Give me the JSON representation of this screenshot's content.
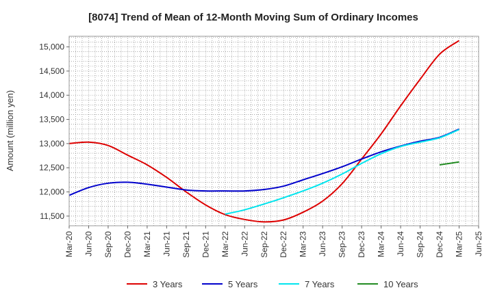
{
  "chart_data": {
    "type": "line",
    "title": "[8074]  Trend of Mean of 12-Month Moving Sum of Ordinary Incomes",
    "xlabel": "",
    "ylabel": "Amount (million yen)",
    "ylim": [
      11300,
      15220
    ],
    "yticks": [
      11500,
      12000,
      12500,
      13000,
      13500,
      14000,
      14500,
      15000
    ],
    "ytick_labels": [
      "11,500",
      "12,000",
      "12,500",
      "13,000",
      "13,500",
      "14,000",
      "14,500",
      "15,000"
    ],
    "categories": [
      "Mar-20",
      "Jun-20",
      "Sep-20",
      "Dec-20",
      "Mar-21",
      "Jun-21",
      "Sep-21",
      "Dec-21",
      "Mar-22",
      "Jun-22",
      "Sep-22",
      "Dec-22",
      "Mar-23",
      "Jun-23",
      "Sep-23",
      "Dec-23",
      "Mar-24",
      "Jun-24",
      "Sep-24",
      "Dec-24",
      "Mar-25",
      "Jun-25"
    ],
    "grid": true,
    "legend_position": "bottom",
    "series": [
      {
        "name": "3 Years",
        "color": "#dd0000",
        "values": [
          13000,
          13030,
          12960,
          12760,
          12560,
          12300,
          12000,
          11730,
          11530,
          11430,
          11380,
          11420,
          11580,
          11810,
          12170,
          12680,
          13200,
          13780,
          14330,
          14850,
          15130,
          null
        ]
      },
      {
        "name": "5 Years",
        "color": "#0000cc",
        "values": [
          11930,
          12090,
          12180,
          12200,
          12160,
          12100,
          12040,
          12020,
          12020,
          12020,
          12050,
          12120,
          12250,
          12380,
          12520,
          12680,
          12830,
          12950,
          13050,
          13130,
          13300,
          null
        ]
      },
      {
        "name": "7 Years",
        "color": "#00e5ee",
        "values": [
          null,
          null,
          null,
          null,
          null,
          null,
          null,
          null,
          11540,
          11630,
          11750,
          11880,
          12020,
          12180,
          12370,
          12590,
          12790,
          12940,
          13030,
          13120,
          13290,
          null
        ]
      },
      {
        "name": "10 Years",
        "color": "#228b22",
        "values": [
          null,
          null,
          null,
          null,
          null,
          null,
          null,
          null,
          null,
          null,
          null,
          null,
          null,
          null,
          null,
          null,
          null,
          null,
          null,
          12560,
          12620,
          null
        ]
      }
    ]
  }
}
